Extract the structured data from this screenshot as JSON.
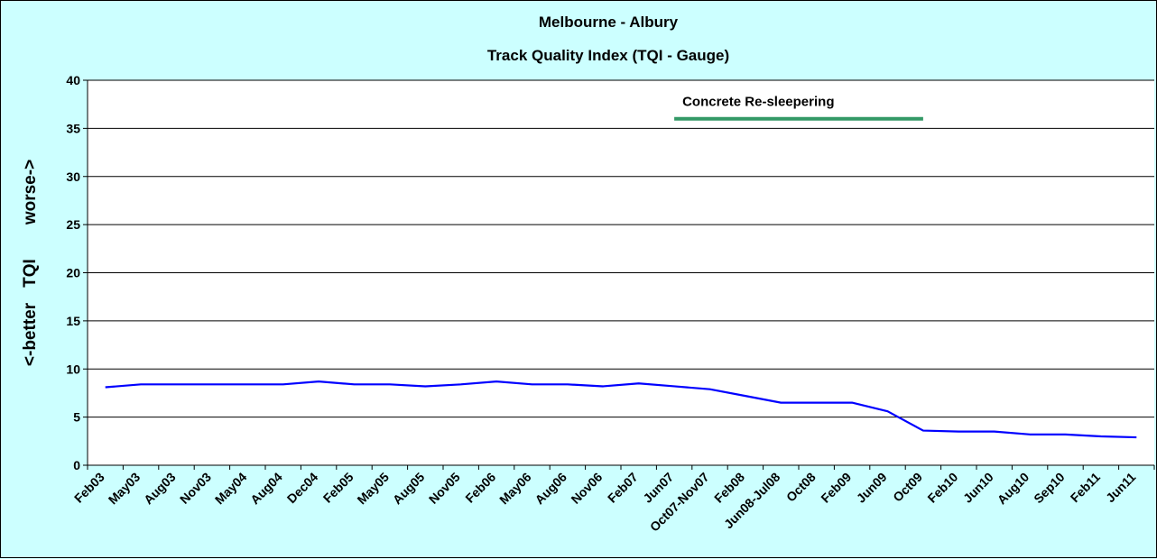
{
  "chart_data": {
    "type": "line",
    "title": "Melbourne - Albury",
    "subtitle": "Track Quality Index (TQI - Gauge)",
    "ylabel": "<-better        TQI        worse->",
    "ylabel_parts": [
      "<-better",
      "TQI",
      "worse->"
    ],
    "ylim": [
      0,
      40
    ],
    "yticks": [
      0,
      5,
      10,
      15,
      20,
      25,
      30,
      35,
      40
    ],
    "grid": true,
    "legend": "none",
    "categories": [
      "Feb03",
      "May03",
      "Aug03",
      "Nov03",
      "May04",
      "Aug04",
      "Dec04",
      "Feb05",
      "May05",
      "Aug05",
      "Nov05",
      "Feb06",
      "May06",
      "Aug06",
      "Nov06",
      "Feb07",
      "Jun07",
      "Oct07-Nov07",
      "Feb08",
      "Jun08-Jul08",
      "Oct08",
      "Feb09",
      "Jun09",
      "Oct09",
      "Feb10",
      "Jun10",
      "Aug10",
      "Sep10",
      "Feb11",
      "Jun11"
    ],
    "series": [
      {
        "color": "#0000ff",
        "values": [
          8.1,
          8.4,
          8.4,
          8.4,
          8.4,
          8.4,
          8.7,
          8.4,
          8.4,
          8.2,
          8.4,
          8.7,
          8.4,
          8.4,
          8.2,
          8.5,
          8.2,
          7.9,
          7.2,
          6.5,
          6.5,
          6.5,
          5.6,
          3.6,
          3.5,
          3.5,
          3.2,
          3.2,
          3.0,
          2.9
        ]
      }
    ],
    "annotations": [
      {
        "text": "Concrete Re-sleepering",
        "color": "#339966",
        "y": 36,
        "from_category": "Jun07",
        "to_category": "Oct09"
      }
    ]
  }
}
